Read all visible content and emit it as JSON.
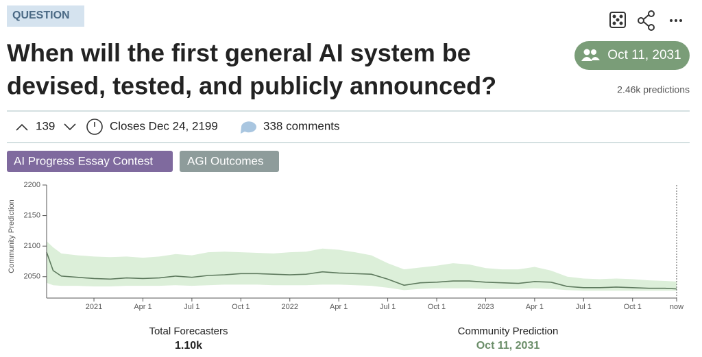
{
  "header": {
    "tag": "QUESTION",
    "title_lines": [
      "When will the first general AI system be",
      "devised, tested, and publicly announced?"
    ],
    "community_prediction": "Oct 11, 2031",
    "predictions": "2.46k predictions"
  },
  "stats": {
    "votes": 139,
    "closes": "Closes Dec 24, 2199",
    "comments": "338 comments"
  },
  "tags": [
    "AI Progress Essay Contest",
    "AGI Outcomes"
  ],
  "chart_data": {
    "type": "line",
    "y_label": "Community Prediction",
    "line_color": "#5e7a5e",
    "band_color": "#dcefd9",
    "x": [
      -2.9,
      -2.5,
      -2,
      -1,
      0,
      1,
      2,
      3,
      4,
      5,
      6,
      7,
      8,
      9,
      10,
      11,
      12,
      13,
      14,
      15,
      16,
      17,
      18,
      19,
      20,
      21,
      22,
      23,
      24,
      25,
      26,
      27,
      28,
      29,
      30,
      31,
      32,
      33,
      34,
      35,
      35.7
    ],
    "values": [
      2090,
      2060,
      2051,
      2049,
      2047,
      2046,
      2048,
      2047,
      2048,
      2051,
      2049,
      2052,
      2053,
      2055,
      2055,
      2054,
      2053,
      2054,
      2058,
      2056,
      2055,
      2054,
      2046,
      2036,
      2040,
      2041,
      2043,
      2043,
      2041,
      2040,
      2039,
      2042,
      2041,
      2034,
      2032,
      2032,
      2033,
      2032,
      2031,
      2031,
      2030
    ],
    "upper": [
      2108,
      2098,
      2088,
      2085,
      2083,
      2082,
      2083,
      2081,
      2083,
      2087,
      2085,
      2090,
      2091,
      2090,
      2089,
      2088,
      2090,
      2091,
      2096,
      2094,
      2090,
      2085,
      2072,
      2062,
      2065,
      2068,
      2072,
      2070,
      2064,
      2062,
      2062,
      2066,
      2060,
      2050,
      2047,
      2046,
      2047,
      2046,
      2044,
      2043,
      2042
    ],
    "lower": [
      2040,
      2036,
      2035,
      2035,
      2034,
      2034,
      2035,
      2035,
      2035,
      2036,
      2035,
      2036,
      2037,
      2037,
      2037,
      2036,
      2036,
      2036,
      2037,
      2037,
      2036,
      2035,
      2032,
      2028,
      2030,
      2031,
      2031,
      2031,
      2030,
      2030,
      2030,
      2031,
      2030,
      2028,
      2027,
      2027,
      2027,
      2027,
      2027,
      2027,
      2027
    ],
    "xlim": [
      -2.9,
      35.7
    ],
    "xticks": [
      {
        "value": 0,
        "label": "2021"
      },
      {
        "value": 3,
        "label": "Apr 1"
      },
      {
        "value": 6,
        "label": "Jul 1"
      },
      {
        "value": 9,
        "label": "Oct 1"
      },
      {
        "value": 12,
        "label": "2022"
      },
      {
        "value": 15,
        "label": "Apr 1"
      },
      {
        "value": 18,
        "label": "Jul 1"
      },
      {
        "value": 21,
        "label": "Oct 1"
      },
      {
        "value": 24,
        "label": "2023"
      },
      {
        "value": 27,
        "label": "Apr 1"
      },
      {
        "value": 30,
        "label": "Jul 1"
      },
      {
        "value": 33,
        "label": "Oct 1"
      },
      {
        "value": 35.7,
        "label": "now"
      }
    ],
    "ylim": [
      2015,
      2200
    ],
    "yticks": [
      2050,
      2100,
      2150,
      2200
    ]
  },
  "footer": {
    "items": [
      {
        "label": "Total Forecasters",
        "value": "1.10k"
      },
      {
        "label": "Community Prediction",
        "value": "Oct 11, 2031"
      }
    ]
  }
}
